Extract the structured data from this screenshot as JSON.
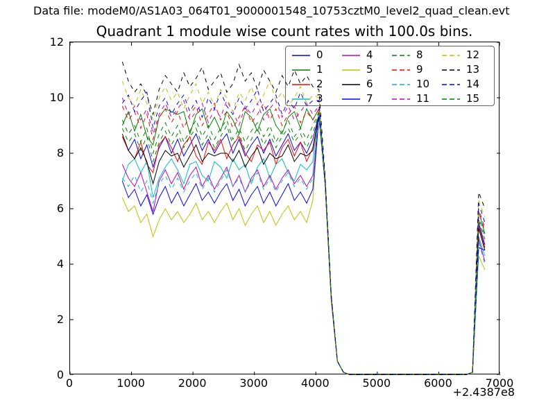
{
  "header": {
    "datafile_label": "Data file: modeM0/AS1A03_064T01_9000001548_10753cztM0_level2_quad_clean.evt"
  },
  "chart_data": {
    "type": "line",
    "title": "Quadrant 1 module wise count rates with 100.0s bins.",
    "xlabel": "",
    "ylabel": "",
    "x_offset_label": "+2.4387e8",
    "xlim": [
      0,
      7000
    ],
    "ylim": [
      0,
      12
    ],
    "x_ticks": [
      0,
      1000,
      2000,
      3000,
      4000,
      5000,
      6000,
      7000
    ],
    "y_ticks": [
      0,
      2,
      4,
      6,
      8,
      10,
      12
    ],
    "grid": false,
    "legend_position": "upper center, 4 columns, column-major",
    "bin_size_seconds": 100.0,
    "x": [
      850,
      950,
      1050,
      1150,
      1250,
      1350,
      1450,
      1550,
      1650,
      1750,
      1850,
      1950,
      2050,
      2150,
      2250,
      2350,
      2450,
      2550,
      2650,
      2750,
      2850,
      2950,
      3050,
      3150,
      3250,
      3350,
      3450,
      3550,
      3650,
      3750,
      3850,
      3950,
      4050,
      4150,
      4250,
      4350,
      4450,
      4550,
      4650,
      4750,
      4850,
      4950,
      5050,
      5150,
      5250,
      5350,
      5450,
      5550,
      5650,
      5750,
      5850,
      5950,
      6050,
      6150,
      6250,
      6350,
      6450,
      6550,
      6650,
      6750
    ],
    "series": [
      {
        "label": "0",
        "color": "#0000ff",
        "style": "solid",
        "y": [
          8.6,
          8.1,
          8.5,
          7.8,
          8.3,
          7.5,
          8.2,
          8.6,
          8.0,
          8.5,
          7.9,
          8.3,
          8.7,
          8.1,
          8.5,
          8.0,
          8.4,
          8.7,
          8.0,
          8.5,
          7.9,
          8.3,
          8.6,
          8.0,
          8.5,
          7.9,
          8.3,
          8.7,
          8.1,
          8.4,
          8.0,
          8.5,
          9.4,
          6.9,
          2.8,
          0.5,
          0.1,
          0.02,
          0.02,
          0.02,
          0.02,
          0.02,
          0.02,
          0.02,
          0.02,
          0.02,
          0.02,
          0.02,
          0.02,
          0.02,
          0.02,
          0.02,
          0.02,
          0.02,
          0.02,
          0.02,
          0.02,
          0.1,
          5.5,
          4.7
        ]
      },
      {
        "label": "1",
        "color": "#008000",
        "style": "solid",
        "y": [
          9.0,
          9.5,
          8.8,
          9.4,
          8.6,
          8.3,
          9.3,
          9.6,
          9.5,
          9.4,
          9.5,
          8.7,
          9.4,
          9.6,
          8.9,
          9.3,
          8.8,
          9.5,
          9.2,
          8.7,
          9.5,
          9.3,
          8.8,
          9.4,
          9.6,
          9.0,
          8.7,
          9.3,
          9.5,
          8.9,
          9.6,
          9.2,
          9.6,
          7.0,
          2.8,
          0.5,
          0.1,
          0.02,
          0.02,
          0.02,
          0.02,
          0.02,
          0.02,
          0.02,
          0.02,
          0.02,
          0.02,
          0.02,
          0.02,
          0.02,
          0.02,
          0.02,
          0.02,
          0.02,
          0.02,
          0.02,
          0.02,
          0.1,
          5.9,
          5.1
        ]
      },
      {
        "label": "2",
        "color": "#ff0000",
        "style": "solid",
        "y": [
          8.6,
          8.1,
          7.8,
          8.4,
          7.6,
          7.3,
          8.3,
          8.6,
          8.2,
          7.7,
          8.3,
          8.6,
          7.9,
          7.6,
          8.4,
          8.1,
          8.5,
          7.8,
          8.3,
          8.6,
          8.0,
          7.7,
          8.3,
          8.1,
          8.4,
          7.6,
          8.2,
          8.5,
          7.9,
          8.4,
          7.7,
          8.2,
          9.4,
          6.9,
          2.7,
          0.5,
          0.1,
          0.02,
          0.02,
          0.02,
          0.02,
          0.02,
          0.02,
          0.02,
          0.02,
          0.02,
          0.02,
          0.02,
          0.02,
          0.02,
          0.02,
          0.02,
          0.02,
          0.02,
          0.02,
          0.02,
          0.02,
          0.1,
          5.4,
          4.6
        ]
      },
      {
        "label": "3",
        "color": "#00bfbf",
        "style": "solid",
        "y": [
          7.0,
          7.6,
          7.8,
          7.3,
          7.7,
          6.4,
          7.1,
          7.5,
          7.8,
          7.4,
          6.9,
          7.6,
          7.7,
          7.2,
          7.0,
          7.7,
          7.5,
          7.1,
          7.8,
          7.4,
          7.6,
          6.9,
          7.5,
          7.8,
          7.1,
          7.6,
          7.8,
          7.3,
          7.0,
          7.6,
          7.4,
          7.7,
          9.5,
          7.1,
          2.9,
          0.5,
          0.1,
          0.02,
          0.02,
          0.02,
          0.02,
          0.02,
          0.02,
          0.02,
          0.02,
          0.02,
          0.02,
          0.02,
          0.02,
          0.02,
          0.02,
          0.02,
          0.02,
          0.02,
          0.02,
          0.02,
          0.02,
          0.1,
          5.0,
          4.3
        ]
      },
      {
        "label": "4",
        "color": "#bf00bf",
        "style": "solid",
        "y": [
          7.6,
          7.1,
          6.8,
          7.3,
          6.6,
          5.9,
          7.0,
          7.4,
          6.9,
          7.3,
          6.7,
          7.2,
          7.5,
          6.8,
          7.2,
          6.7,
          7.1,
          7.5,
          6.8,
          7.2,
          6.6,
          7.1,
          7.4,
          6.8,
          7.2,
          6.7,
          7.1,
          7.4,
          6.9,
          7.2,
          6.8,
          7.2,
          9.4,
          7.0,
          2.8,
          0.5,
          0.1,
          0.02,
          0.02,
          0.02,
          0.02,
          0.02,
          0.02,
          0.02,
          0.02,
          0.02,
          0.02,
          0.02,
          0.02,
          0.02,
          0.02,
          0.02,
          0.02,
          0.02,
          0.02,
          0.02,
          0.02,
          0.1,
          4.9,
          4.1
        ]
      },
      {
        "label": "5",
        "color": "#bfbf00",
        "style": "solid",
        "y": [
          6.4,
          5.9,
          6.1,
          5.5,
          5.8,
          5.0,
          5.6,
          6.0,
          5.6,
          5.9,
          5.5,
          5.8,
          6.2,
          5.6,
          5.9,
          5.5,
          5.9,
          6.2,
          5.6,
          6.0,
          5.4,
          5.8,
          6.1,
          5.5,
          5.9,
          5.4,
          5.8,
          6.1,
          5.6,
          5.9,
          5.5,
          6.3,
          9.3,
          7.0,
          2.8,
          0.5,
          0.1,
          0.02,
          0.02,
          0.02,
          0.02,
          0.02,
          0.02,
          0.02,
          0.02,
          0.02,
          0.02,
          0.02,
          0.02,
          0.02,
          0.02,
          0.02,
          0.02,
          0.02,
          0.02,
          0.02,
          0.02,
          0.1,
          4.3,
          3.8
        ]
      },
      {
        "label": "6",
        "color": "#000000",
        "style": "solid",
        "y": [
          8.7,
          8.1,
          7.8,
          8.2,
          7.7,
          6.9,
          7.7,
          8.1,
          7.9,
          8.0,
          7.5,
          7.9,
          8.3,
          7.7,
          8.0,
          7.9,
          8.0,
          8.0,
          7.7,
          8.1,
          7.5,
          7.9,
          8.2,
          7.6,
          8.0,
          7.8,
          7.9,
          8.3,
          7.7,
          8.0,
          7.9,
          8.1,
          9.4,
          6.9,
          2.8,
          0.5,
          0.1,
          0.02,
          0.02,
          0.02,
          0.02,
          0.02,
          0.02,
          0.02,
          0.02,
          0.02,
          0.02,
          0.02,
          0.02,
          0.02,
          0.02,
          0.02,
          0.02,
          0.02,
          0.02,
          0.02,
          0.02,
          0.1,
          5.3,
          4.5
        ]
      },
      {
        "label": "7",
        "color": "#0000ff",
        "style": "solid",
        "y": [
          7.0,
          6.4,
          6.7,
          6.1,
          6.5,
          5.8,
          6.4,
          6.8,
          6.2,
          6.6,
          6.1,
          6.5,
          6.9,
          6.3,
          6.6,
          6.2,
          6.6,
          6.9,
          6.3,
          6.7,
          6.1,
          6.5,
          6.8,
          6.2,
          6.6,
          6.1,
          6.5,
          6.9,
          6.3,
          6.6,
          6.2,
          6.7,
          9.3,
          7.0,
          2.8,
          0.5,
          0.1,
          0.02,
          0.02,
          0.02,
          0.02,
          0.02,
          0.02,
          0.02,
          0.02,
          0.02,
          0.02,
          0.02,
          0.02,
          0.02,
          0.02,
          0.02,
          0.02,
          0.02,
          0.02,
          0.02,
          0.02,
          0.1,
          4.6,
          4.5
        ]
      },
      {
        "label": "8",
        "color": "#008000",
        "style": "dashed",
        "y": [
          9.2,
          8.7,
          9.0,
          8.4,
          8.9,
          8.0,
          8.7,
          9.1,
          8.6,
          9.0,
          8.4,
          8.8,
          9.2,
          8.6,
          9.0,
          8.5,
          8.9,
          9.2,
          8.5,
          8.9,
          8.4,
          8.8,
          9.1,
          8.6,
          9.0,
          8.4,
          8.8,
          9.2,
          8.6,
          8.9,
          8.5,
          9.0,
          9.5,
          7.1,
          2.9,
          0.5,
          0.1,
          0.02,
          0.02,
          0.02,
          0.02,
          0.02,
          0.02,
          0.02,
          0.02,
          0.02,
          0.02,
          0.02,
          0.02,
          0.02,
          0.02,
          0.02,
          0.02,
          0.02,
          0.02,
          0.02,
          0.02,
          0.1,
          5.7,
          5.0
        ]
      },
      {
        "label": "9",
        "color": "#ff0000",
        "style": "dashed",
        "y": [
          9.7,
          9.2,
          9.5,
          8.9,
          9.4,
          8.5,
          9.3,
          9.6,
          9.1,
          9.5,
          8.9,
          9.4,
          9.7,
          9.0,
          9.4,
          9.8,
          9.2,
          9.5,
          8.9,
          9.3,
          9.7,
          9.1,
          9.4,
          9.8,
          9.2,
          9.6,
          9.0,
          9.4,
          9.7,
          9.1,
          9.5,
          9.2,
          9.6,
          7.1,
          2.9,
          0.5,
          0.1,
          0.02,
          0.02,
          0.02,
          0.02,
          0.02,
          0.02,
          0.02,
          0.02,
          0.02,
          0.02,
          0.02,
          0.02,
          0.02,
          0.02,
          0.02,
          0.02,
          0.02,
          0.02,
          0.02,
          0.02,
          0.1,
          5.9,
          5.2
        ]
      },
      {
        "label": "10",
        "color": "#00bfbf",
        "style": "dashed",
        "y": [
          7.1,
          6.8,
          7.2,
          6.6,
          7.0,
          6.2,
          6.9,
          7.2,
          6.7,
          7.1,
          6.6,
          7.0,
          7.3,
          6.7,
          7.1,
          6.6,
          7.0,
          7.4,
          6.8,
          7.1,
          6.6,
          7.0,
          7.3,
          6.7,
          7.1,
          6.6,
          7.0,
          7.3,
          6.8,
          7.1,
          6.7,
          7.1,
          9.4,
          7.0,
          2.8,
          0.5,
          0.1,
          0.02,
          0.02,
          0.02,
          0.02,
          0.02,
          0.02,
          0.02,
          0.02,
          0.02,
          0.02,
          0.02,
          0.02,
          0.02,
          0.02,
          0.02,
          0.02,
          0.02,
          0.02,
          0.02,
          0.02,
          0.1,
          4.8,
          4.0
        ]
      },
      {
        "label": "11",
        "color": "#bf00bf",
        "style": "dashed",
        "y": [
          10.0,
          9.4,
          9.7,
          9.2,
          9.6,
          8.7,
          9.4,
          9.8,
          9.3,
          9.6,
          9.9,
          9.2,
          9.5,
          9.8,
          9.1,
          9.6,
          9.3,
          9.9,
          9.5,
          9.0,
          9.7,
          9.4,
          9.8,
          9.2,
          9.6,
          9.9,
          9.3,
          9.7,
          9.2,
          9.5,
          9.8,
          9.4,
          9.7,
          7.0,
          2.8,
          0.5,
          0.1,
          0.02,
          0.02,
          0.02,
          0.02,
          0.02,
          0.02,
          0.02,
          0.02,
          0.02,
          0.02,
          0.02,
          0.02,
          0.02,
          0.02,
          0.02,
          0.02,
          0.02,
          0.02,
          0.02,
          0.02,
          0.1,
          6.0,
          5.3
        ]
      },
      {
        "label": "12",
        "color": "#bfbf00",
        "style": "dashed",
        "y": [
          10.6,
          10.0,
          9.7,
          10.3,
          9.8,
          9.2,
          10.0,
          10.4,
          9.9,
          10.2,
          9.6,
          10.1,
          10.5,
          9.8,
          10.2,
          9.7,
          10.3,
          10.0,
          9.5,
          10.2,
          9.9,
          10.4,
          9.8,
          10.1,
          10.6,
          9.9,
          10.2,
          9.7,
          10.0,
          10.4,
          9.8,
          10.1,
          10.0,
          7.1,
          2.9,
          0.5,
          0.1,
          0.02,
          0.02,
          0.02,
          0.02,
          0.02,
          0.02,
          0.02,
          0.02,
          0.02,
          0.02,
          0.02,
          0.02,
          0.02,
          0.02,
          0.02,
          0.02,
          0.02,
          0.02,
          0.02,
          0.02,
          0.1,
          6.3,
          5.7
        ]
      },
      {
        "label": "13",
        "color": "#000000",
        "style": "dashed",
        "y": [
          11.3,
          10.6,
          10.2,
          10.5,
          10.1,
          9.4,
          10.3,
          10.8,
          10.5,
          10.2,
          10.9,
          10.4,
          10.7,
          11.1,
          10.3,
          10.6,
          10.9,
          10.2,
          10.5,
          11.2,
          10.6,
          10.9,
          10.3,
          11.0,
          10.6,
          10.2,
          10.8,
          10.4,
          11.0,
          10.5,
          10.8,
          10.4,
          10.3,
          7.2,
          2.9,
          0.5,
          0.1,
          0.02,
          0.02,
          0.02,
          0.02,
          0.02,
          0.02,
          0.02,
          0.02,
          0.02,
          0.02,
          0.02,
          0.02,
          0.02,
          0.02,
          0.02,
          0.02,
          0.02,
          0.02,
          0.02,
          0.02,
          0.1,
          6.6,
          6.0
        ]
      },
      {
        "label": "14",
        "color": "#0000ff",
        "style": "dashed",
        "y": [
          9.8,
          10.1,
          9.5,
          9.9,
          10.2,
          8.9,
          9.7,
          10.0,
          9.4,
          9.8,
          10.1,
          9.5,
          9.9,
          9.3,
          10.0,
          9.6,
          10.2,
          9.7,
          9.4,
          10.0,
          9.6,
          9.9,
          10.3,
          9.5,
          9.8,
          10.1,
          9.4,
          9.9,
          9.6,
          10.2,
          9.7,
          9.9,
          9.9,
          7.1,
          2.9,
          0.5,
          0.1,
          0.02,
          0.02,
          0.02,
          0.02,
          0.02,
          0.02,
          0.02,
          0.02,
          0.02,
          0.02,
          0.02,
          0.02,
          0.02,
          0.02,
          0.02,
          0.02,
          0.02,
          0.02,
          0.02,
          0.02,
          0.1,
          6.2,
          5.5
        ]
      },
      {
        "label": "15",
        "color": "#008000",
        "style": "dashed",
        "y": [
          8.9,
          8.4,
          8.7,
          8.1,
          8.6,
          7.7,
          8.4,
          8.8,
          8.3,
          8.7,
          8.2,
          8.6,
          8.9,
          8.3,
          8.7,
          8.2,
          8.6,
          9.0,
          8.3,
          8.7,
          8.1,
          8.5,
          8.9,
          8.3,
          8.7,
          8.2,
          8.6,
          8.9,
          8.4,
          8.7,
          8.2,
          8.7,
          9.5,
          7.0,
          2.8,
          0.5,
          0.1,
          0.02,
          0.02,
          0.02,
          0.02,
          0.02,
          0.02,
          0.02,
          0.02,
          0.02,
          0.02,
          0.02,
          0.02,
          0.02,
          0.02,
          0.02,
          0.02,
          0.02,
          0.02,
          0.02,
          0.02,
          0.1,
          5.6,
          4.9
        ]
      }
    ]
  }
}
